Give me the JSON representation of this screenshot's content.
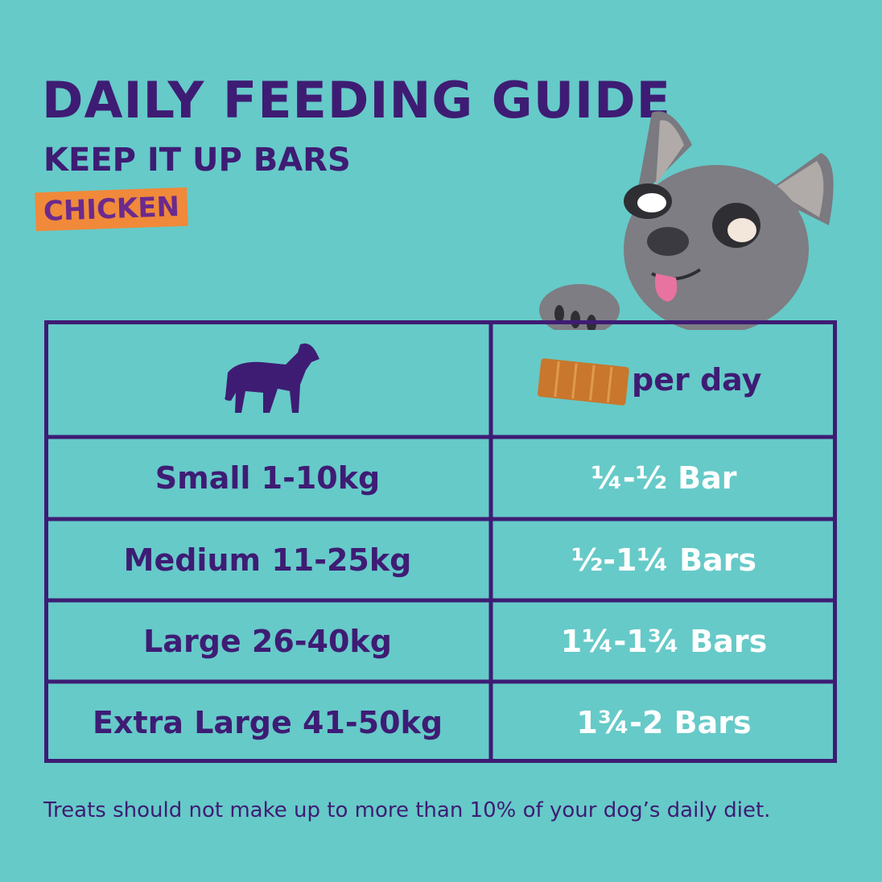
{
  "header": {
    "title": "DAILY FEEDING GUIDE",
    "subtitle": "KEEP IT UP BARS",
    "tag": "CHICKEN"
  },
  "table": {
    "header": [
      "",
      "per day"
    ],
    "rows": [
      [
        "Small 1-10kg",
        "¼-½ Bar"
      ],
      [
        "Medium 11-25kg",
        "½-1¼ Bars"
      ],
      [
        "Large 26-40kg",
        "1¼-1¾ Bars"
      ],
      [
        "Extra Large 41-50kg",
        "1¾-2 Bars"
      ]
    ]
  },
  "footnote": "Treats should not make up to more than 10% of your dog’s daily diet."
}
